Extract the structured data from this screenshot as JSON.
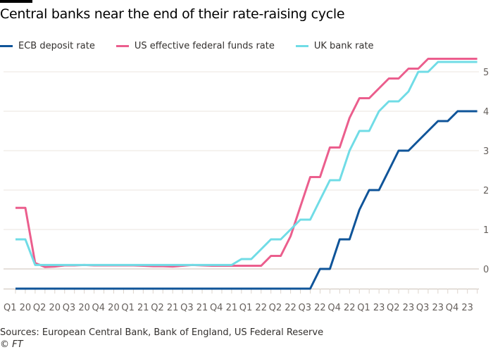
{
  "chart_data": {
    "type": "line",
    "title": "Central banks near the end of their rate-raising cycle",
    "x_tick_labels": [
      "Q1 20",
      "Q2 20",
      "Q3 20",
      "Q4 20",
      "Q1 21",
      "Q2 21",
      "Q3 21",
      "Q4 21",
      "Q1 22",
      "Q2 22",
      "Q3 22",
      "Q4 22",
      "Q1 23",
      "Q2 23",
      "Q3 23",
      "Q4 23"
    ],
    "x": "monthly, Jan 2020 – Dec 2023",
    "y_ticks": [
      0,
      1,
      2,
      3,
      4,
      5
    ],
    "ylim": [
      -0.5,
      5.4
    ],
    "y_axis_side": "right",
    "grid": true,
    "legend_position": "top",
    "series": [
      {
        "name": "ECB deposit rate",
        "color": "#0f5499",
        "values": [
          -0.5,
          -0.5,
          -0.5,
          -0.5,
          -0.5,
          -0.5,
          -0.5,
          -0.5,
          -0.5,
          -0.5,
          -0.5,
          -0.5,
          -0.5,
          -0.5,
          -0.5,
          -0.5,
          -0.5,
          -0.5,
          -0.5,
          -0.5,
          -0.5,
          -0.5,
          -0.5,
          -0.5,
          -0.5,
          -0.5,
          -0.5,
          -0.5,
          -0.5,
          -0.5,
          -0.5,
          0,
          0,
          0.75,
          0.75,
          1.5,
          2.0,
          2.0,
          2.5,
          3.0,
          3.0,
          3.25,
          3.5,
          3.75,
          3.75,
          4.0,
          4.0,
          4.0
        ]
      },
      {
        "name": "US effective federal funds rate",
        "color": "#eb5e8d",
        "values": [
          1.55,
          1.55,
          0.15,
          0.05,
          0.06,
          0.09,
          0.09,
          0.1,
          0.09,
          0.09,
          0.09,
          0.09,
          0.09,
          0.08,
          0.07,
          0.07,
          0.06,
          0.08,
          0.1,
          0.09,
          0.08,
          0.08,
          0.08,
          0.08,
          0.08,
          0.08,
          0.33,
          0.33,
          0.83,
          1.58,
          2.33,
          2.33,
          3.08,
          3.08,
          3.83,
          4.33,
          4.33,
          4.58,
          4.83,
          4.83,
          5.08,
          5.08,
          5.33,
          5.33,
          5.33,
          5.33,
          5.33,
          5.33
        ]
      },
      {
        "name": "UK bank rate",
        "color": "#70dce6",
        "values": [
          0.75,
          0.75,
          0.1,
          0.1,
          0.1,
          0.1,
          0.1,
          0.1,
          0.1,
          0.1,
          0.1,
          0.1,
          0.1,
          0.1,
          0.1,
          0.1,
          0.1,
          0.1,
          0.1,
          0.1,
          0.1,
          0.1,
          0.1,
          0.25,
          0.25,
          0.5,
          0.75,
          0.75,
          1.0,
          1.25,
          1.25,
          1.75,
          2.25,
          2.25,
          3.0,
          3.5,
          3.5,
          4.0,
          4.25,
          4.25,
          4.5,
          5.0,
          5.0,
          5.25,
          5.25,
          5.25,
          5.25,
          5.25
        ]
      }
    ]
  },
  "footer": {
    "sources": "Sources: European Central Bank, Bank of England, US Federal Reserve",
    "copyright": "© FT"
  }
}
